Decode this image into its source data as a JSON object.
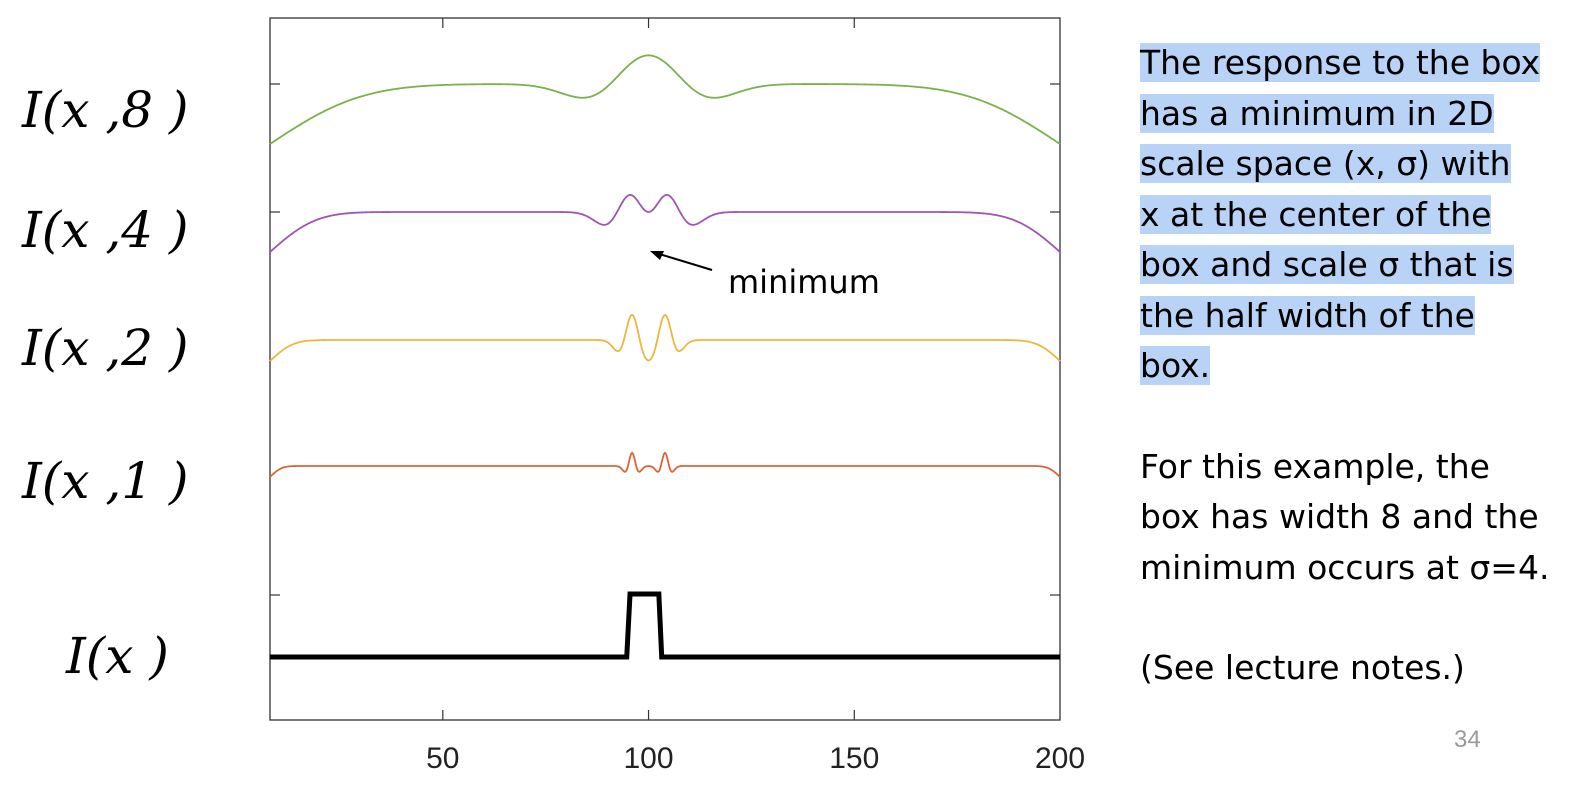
{
  "row_labels": [
    "I(x ,8 )",
    "I(x ,4 )",
    "I(x ,2 )",
    "I(x ,1 )",
    "I(x )"
  ],
  "annotation": "minimum",
  "side_text": {
    "highlighted_lines": [
      "The response to the box",
      "has a minimum in 2D",
      "scale space (x, σ)  with",
      "x at the center of the",
      "box and scale σ  that is",
      "the half width of the",
      "box."
    ],
    "example_lines": [
      "For this example, the",
      "box has width 8 and the",
      "minimum occurs at σ=4."
    ],
    "note": "(See lecture notes.)"
  },
  "page_number": "34",
  "colors": {
    "highlight": "#b8d3f6",
    "sigma8": "#7bb04a",
    "sigma4": "#a055b0",
    "sigma2": "#eeb63e",
    "sigma1": "#d9663a",
    "box": "#000000"
  },
  "chart_data": {
    "type": "line",
    "title": "",
    "xlabel": "",
    "ylabel": "",
    "xlim": [
      8,
      200
    ],
    "xticks": [
      50,
      100,
      150,
      200
    ],
    "box": {
      "start": 96,
      "end": 104,
      "width": 8,
      "height": 1
    },
    "series": [
      {
        "name": "I(x ,8 )",
        "sigma": 8,
        "color": "#7bb04a"
      },
      {
        "name": "I(x ,4 )",
        "sigma": 4,
        "color": "#a055b0"
      },
      {
        "name": "I(x ,2 )",
        "sigma": 2,
        "color": "#eeb63e"
      },
      {
        "name": "I(x ,1 )",
        "sigma": 1,
        "color": "#d9663a"
      },
      {
        "name": "I(x )",
        "sigma": 0,
        "color": "#000000"
      }
    ],
    "minimum": {
      "x": 100,
      "sigma": 4
    }
  }
}
